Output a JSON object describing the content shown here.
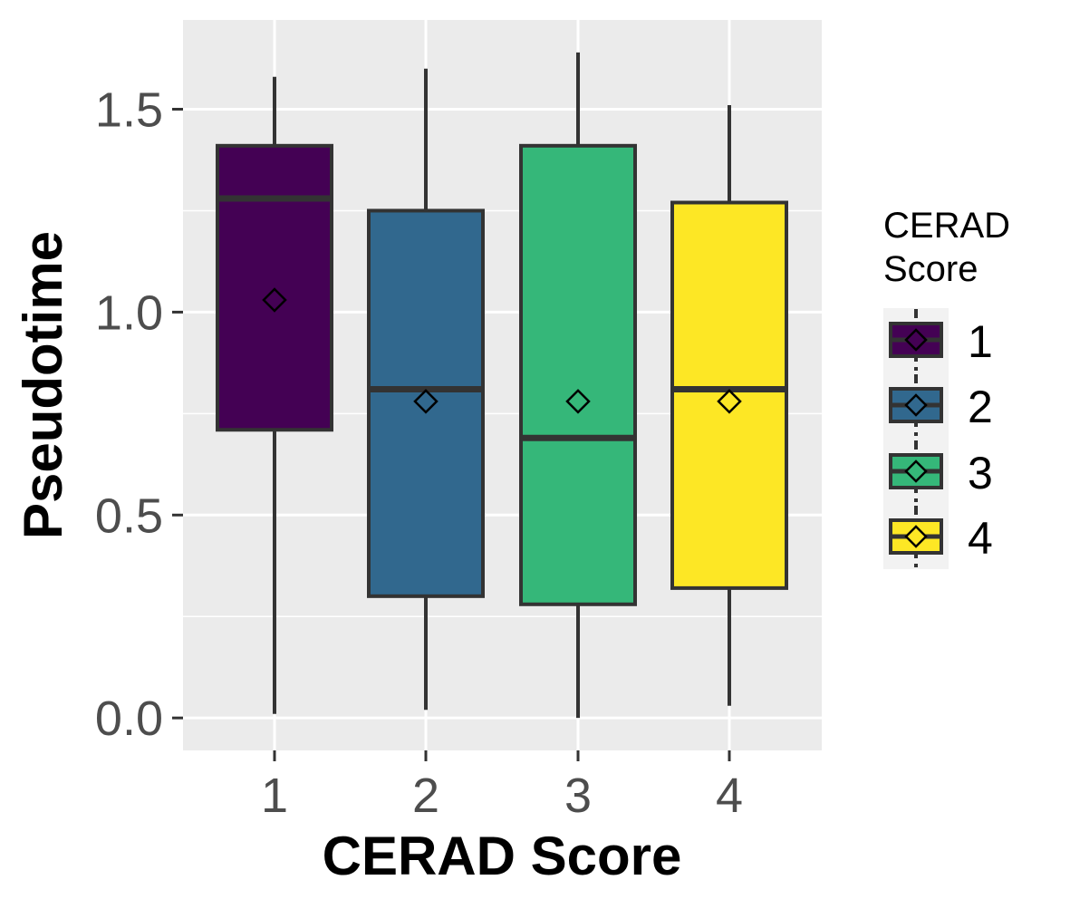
{
  "chart_data": {
    "type": "box",
    "xlabel": "CERAD Score",
    "ylabel": "Pseudotime",
    "ylim": [
      -0.08,
      1.72
    ],
    "yticks": [
      0.0,
      0.5,
      1.0,
      1.5
    ],
    "ytick_labels": [
      "0.0",
      "0.5",
      "1.0",
      "1.5"
    ],
    "categories": [
      "1",
      "2",
      "3",
      "4"
    ],
    "legend": {
      "title_lines": [
        "CERAD",
        "Score"
      ],
      "placement": "right",
      "entries": [
        "1",
        "2",
        "3",
        "4"
      ]
    },
    "grid": true,
    "boxes": [
      {
        "category": "1",
        "whisker_low": 0.01,
        "q1": 0.71,
        "median": 1.28,
        "q3": 1.41,
        "whisker_high": 1.58,
        "mean": 1.03,
        "color": "#440154"
      },
      {
        "category": "2",
        "whisker_low": 0.02,
        "q1": 0.3,
        "median": 0.81,
        "q3": 1.25,
        "whisker_high": 1.6,
        "mean": 0.78,
        "color": "#31688E"
      },
      {
        "category": "3",
        "whisker_low": 0.0,
        "q1": 0.28,
        "median": 0.69,
        "q3": 1.41,
        "whisker_high": 1.64,
        "mean": 0.78,
        "color": "#35B779"
      },
      {
        "category": "4",
        "whisker_low": 0.03,
        "q1": 0.32,
        "median": 0.81,
        "q3": 1.27,
        "whisker_high": 1.51,
        "mean": 0.78,
        "color": "#FDE725"
      }
    ]
  }
}
